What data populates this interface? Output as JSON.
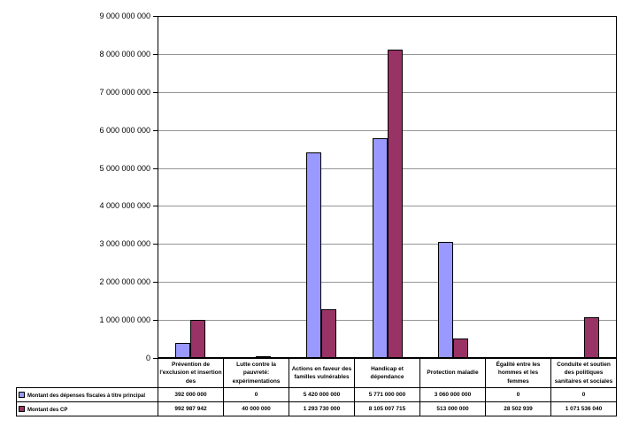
{
  "chart_data": {
    "type": "bar",
    "title": "",
    "xlabel": "",
    "ylabel": "",
    "grid": true,
    "legend_position": "data-table-left",
    "ylim": [
      0,
      9000000000
    ],
    "ytick_step": 1000000000,
    "ytick_labels": [
      "0",
      "1 000 000 000",
      "2 000 000 000",
      "3 000 000 000",
      "4 000 000 000",
      "5 000 000 000",
      "6 000 000 000",
      "7 000 000 000",
      "8 000 000 000",
      "9 000 000 000"
    ],
    "categories": [
      "Prévention de l'exclusion et insertion des",
      "Lutte contre la pauvreté: expérimentations",
      "Actions en faveur des familles vulnérables",
      "Handicap et dépendance",
      "Protection maladie",
      "Égalité entre les hommes et les femmes",
      "Conduite et soutien des politiques sanitaires et sociales"
    ],
    "series": [
      {
        "name": "Montant des dépenses fiscales à titre principal",
        "color": "#9999FF",
        "values": [
          392000000,
          0,
          5420000000,
          5771000000,
          3060000000,
          0,
          0
        ],
        "labels": [
          "392 000 000",
          "0",
          "5 420 000 000",
          "5 771 000 000",
          "3 060 000 000",
          "0",
          "0"
        ]
      },
      {
        "name": "Montant des CP",
        "color": "#993366",
        "values": [
          992987942,
          40000000,
          1293730000,
          8105007715,
          513000000,
          28502939,
          1071536040
        ],
        "labels": [
          "992 987 942",
          "40 000 000",
          "1 293 730 000",
          "8 105 007 715",
          "513 000 000",
          "28 502 939",
          "1 071 536 040"
        ]
      }
    ]
  }
}
